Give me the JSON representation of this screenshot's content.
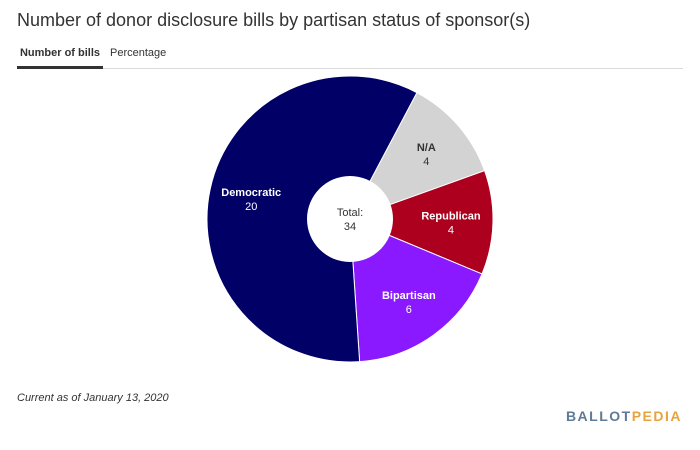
{
  "title": "Number of donor disclosure bills by partisan status of sponsor(s)",
  "tabs": [
    {
      "label": "Number of bills",
      "active": true
    },
    {
      "label": "Percentage",
      "active": false
    }
  ],
  "chart_data": {
    "type": "pie",
    "donut": true,
    "center_label": "Total:",
    "center_value": "34",
    "slices": [
      {
        "label": "N/A",
        "value": 4,
        "color": "#d3d3d3",
        "text_color": "#333333"
      },
      {
        "label": "Republican",
        "value": 4,
        "color": "#ac001e",
        "text_color": "#ffffff"
      },
      {
        "label": "Bipartisan",
        "value": 6,
        "color": "#8a19ff",
        "text_color": "#ffffff"
      },
      {
        "label": "Democratic",
        "value": 20,
        "color": "#000066",
        "text_color": "#ffffff"
      }
    ]
  },
  "footnote": "Current as of January 13, 2020",
  "logo": {
    "part1": "BALLOT",
    "part2": "PEDIA",
    "color1": "#5f7a97",
    "color2": "#e8a33d"
  }
}
